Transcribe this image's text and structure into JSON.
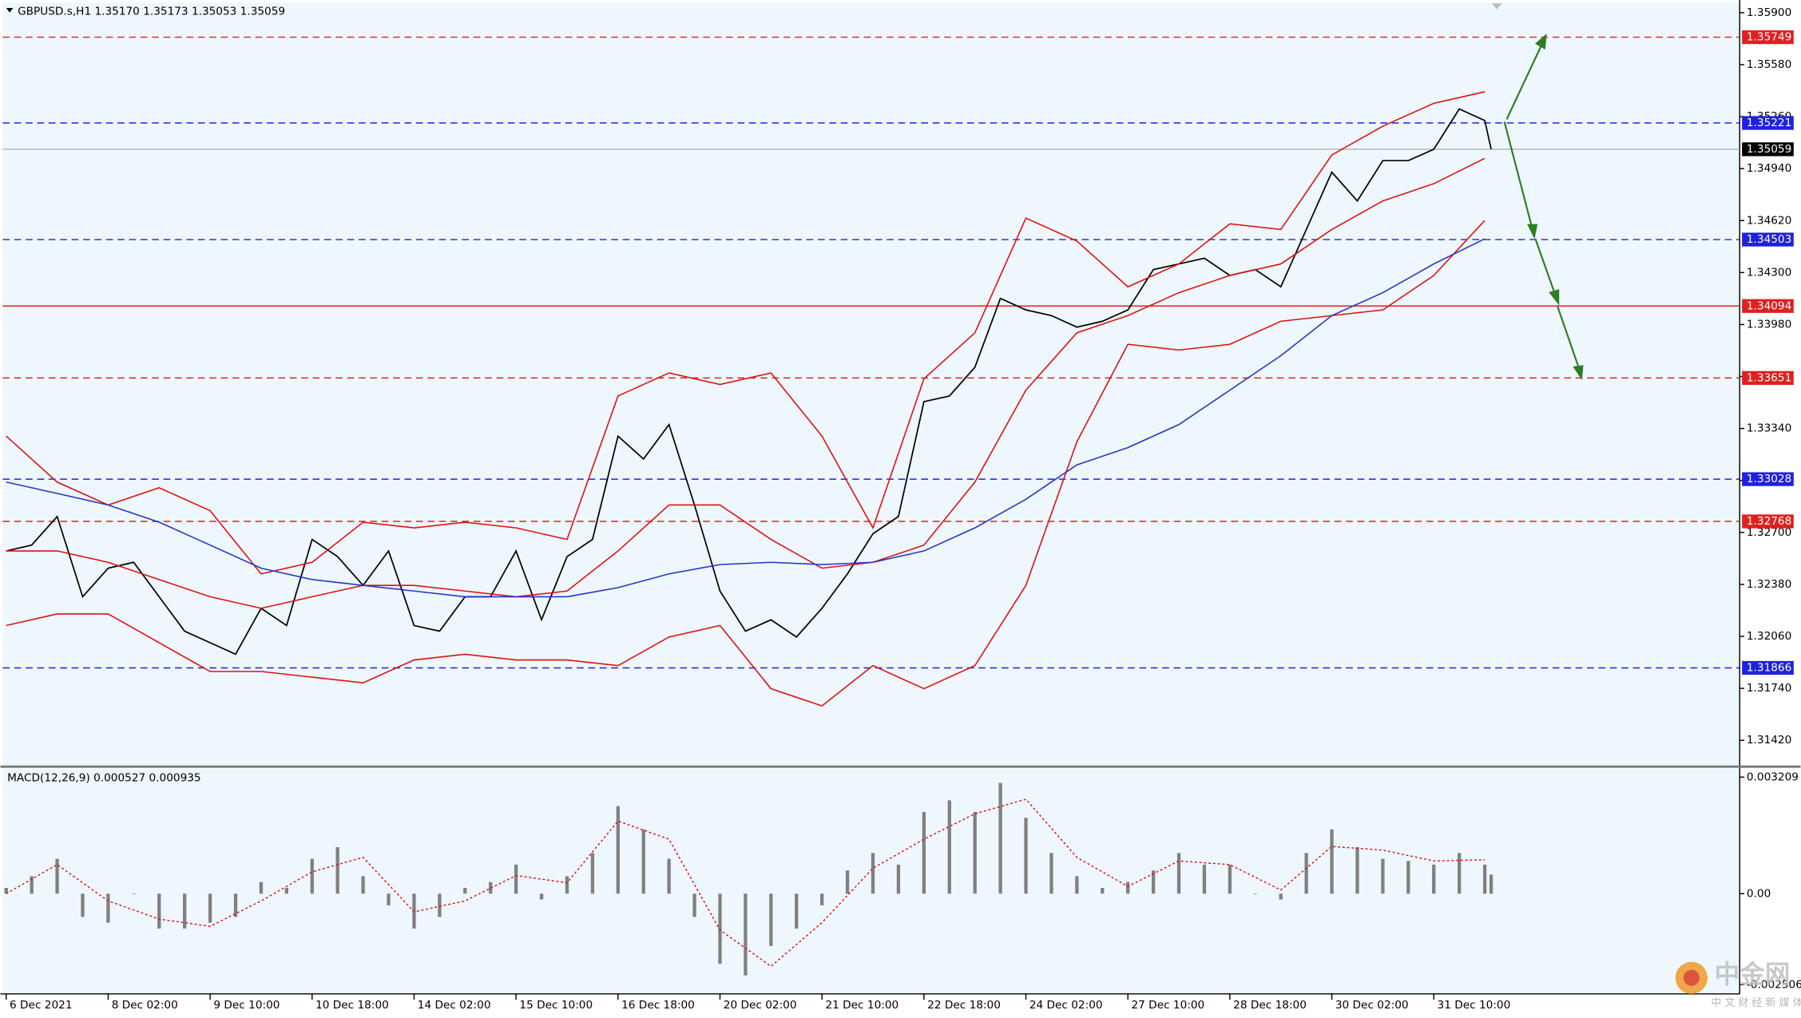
{
  "chart_data": [
    {
      "type": "line",
      "title": "GBPUSD.s,H1  1.35170 1.35173 1.35053 1.35059",
      "xlim": [
        -1.08,
        544
      ],
      "ylim": [
        1.31265,
        1.35978
      ],
      "xticks": [
        {
          "value": 0,
          "label": "6 Dec 2021"
        },
        {
          "value": 32,
          "label": "8 Dec 02:00"
        },
        {
          "value": 64,
          "label": "9 Dec 10:00"
        },
        {
          "value": 96,
          "label": "10 Dec 18:00"
        },
        {
          "value": 128,
          "label": "14 Dec 02:00"
        },
        {
          "value": 160,
          "label": "15 Dec 10:00"
        },
        {
          "value": 192,
          "label": "16 Dec 18:00"
        },
        {
          "value": 224,
          "label": "20 Dec 02:00"
        },
        {
          "value": 256,
          "label": "21 Dec 10:00"
        },
        {
          "value": 288,
          "label": "22 Dec 18:00"
        },
        {
          "value": 320,
          "label": "24 Dec 02:00"
        },
        {
          "value": 352,
          "label": "27 Dec 10:00"
        },
        {
          "value": 384,
          "label": "28 Dec 18:00"
        },
        {
          "value": 416,
          "label": "30 Dec 02:00"
        },
        {
          "value": 448,
          "label": "31 Dec 10:00"
        }
      ],
      "yticks": [
        {
          "value": 1.359,
          "label": "1.35900"
        },
        {
          "value": 1.3558,
          "label": "1.35580"
        },
        {
          "value": 1.3526,
          "label": "1.35260"
        },
        {
          "value": 1.3494,
          "label": "1.34940"
        },
        {
          "value": 1.3462,
          "label": "1.34620"
        },
        {
          "value": 1.343,
          "label": "1.34300"
        },
        {
          "value": 1.3398,
          "label": "1.33980"
        },
        {
          "value": 1.3366,
          "label": "1.33660"
        },
        {
          "value": 1.3334,
          "label": "1.33340"
        },
        {
          "value": 1.3302,
          "label": "1.33020"
        },
        {
          "value": 1.327,
          "label": "1.32700"
        },
        {
          "value": 1.3238,
          "label": "1.32380"
        },
        {
          "value": 1.3206,
          "label": "1.32060"
        },
        {
          "value": 1.3174,
          "label": "1.31740"
        },
        {
          "value": 1.3142,
          "label": "1.31420"
        }
      ],
      "series": [
        {
          "color": "#000000",
          "x": [
            0,
            8,
            16,
            24,
            32,
            40,
            48,
            56,
            64,
            72,
            80,
            88,
            96,
            104,
            112,
            120,
            128,
            136,
            144,
            152,
            160,
            168,
            176,
            184,
            192,
            200,
            208,
            216,
            224,
            232,
            240,
            248,
            256,
            264,
            272,
            280,
            288,
            296,
            304,
            312,
            320,
            328,
            336,
            344,
            352,
            360,
            368,
            376,
            384,
            392,
            400,
            408,
            416,
            424,
            432,
            440,
            448,
            456,
            464,
            466
          ],
          "values": [
            1.32586,
            1.32622,
            1.32798,
            1.32304,
            1.3248,
            1.32516,
            1.32304,
            1.32092,
            1.32021,
            1.3195,
            1.32233,
            1.32127,
            1.32657,
            1.32551,
            1.32374,
            1.32586,
            1.32127,
            1.32092,
            1.32304,
            1.32304,
            1.32586,
            1.32162,
            1.32551,
            1.32657,
            1.33293,
            1.33152,
            1.33364,
            1.32869,
            1.32339,
            1.32092,
            1.32162,
            1.32056,
            1.32233,
            1.32445,
            1.32692,
            1.32798,
            1.33505,
            1.3354,
            1.33717,
            1.34141,
            1.3407,
            1.34035,
            1.33964,
            1.34,
            1.3407,
            1.34318,
            1.34353,
            1.34388,
            1.34282,
            1.34318,
            1.34212,
            1.34565,
            1.34918,
            1.34741,
            1.34989,
            1.34989,
            1.35059,
            1.35307,
            1.35236,
            1.35059
          ]
        },
        {
          "color": "#e01010",
          "x": [
            0,
            16,
            32,
            48,
            64,
            80,
            96,
            112,
            128,
            144,
            160,
            176,
            192,
            208,
            224,
            240,
            256,
            272,
            288,
            304,
            320,
            336,
            352,
            368,
            384,
            400,
            416,
            432,
            448,
            464
          ],
          "values": [
            1.33293,
            1.3301,
            1.32869,
            1.32975,
            1.32834,
            1.32445,
            1.32516,
            1.32763,
            1.32728,
            1.32763,
            1.32728,
            1.32657,
            1.3354,
            1.33682,
            1.33611,
            1.33682,
            1.33293,
            1.32728,
            1.33646,
            1.33929,
            1.34635,
            1.34494,
            1.34212,
            1.34353,
            1.346,
            1.34565,
            1.35024,
            1.35201,
            1.35342,
            1.35413
          ]
        },
        {
          "color": "#e01010",
          "x": [
            0,
            16,
            32,
            48,
            64,
            80,
            96,
            112,
            128,
            144,
            160,
            176,
            192,
            208,
            224,
            240,
            256,
            272,
            288,
            304,
            320,
            336,
            352,
            368,
            384,
            400,
            416,
            432,
            448,
            464
          ],
          "values": [
            1.32586,
            1.32586,
            1.32516,
            1.3241,
            1.32304,
            1.32233,
            1.32304,
            1.32374,
            1.32374,
            1.32339,
            1.32304,
            1.32339,
            1.32586,
            1.32869,
            1.32869,
            1.32657,
            1.3248,
            1.32516,
            1.32622,
            1.3301,
            1.33576,
            1.33929,
            1.34035,
            1.34176,
            1.34282,
            1.34353,
            1.34565,
            1.34741,
            1.34847,
            1.35003
          ]
        },
        {
          "color": "#e01010",
          "x": [
            0,
            16,
            32,
            48,
            64,
            80,
            96,
            112,
            128,
            144,
            160,
            176,
            192,
            208,
            224,
            240,
            256,
            272,
            288,
            304,
            320,
            336,
            352,
            368,
            384,
            400,
            416,
            432,
            448,
            464
          ],
          "values": [
            1.32127,
            1.32198,
            1.32198,
            1.32021,
            1.31844,
            1.31844,
            1.31809,
            1.31774,
            1.31915,
            1.3195,
            1.31915,
            1.31915,
            1.3188,
            1.32056,
            1.32127,
            1.31738,
            1.31632,
            1.3188,
            1.31738,
            1.3188,
            1.32374,
            1.33258,
            1.33858,
            1.33823,
            1.33858,
            1.34,
            1.34035,
            1.3407,
            1.34282,
            1.34621
          ]
        },
        {
          "color": "#2436c8",
          "x": [
            0,
            16,
            32,
            48,
            64,
            80,
            96,
            112,
            128,
            144,
            160,
            176,
            192,
            208,
            224,
            240,
            256,
            272,
            288,
            304,
            320,
            336,
            352,
            368,
            384,
            400,
            416,
            432,
            448,
            464
          ],
          "values": [
            1.3301,
            1.3294,
            1.32869,
            1.32763,
            1.32622,
            1.3248,
            1.3241,
            1.32374,
            1.32339,
            1.32304,
            1.32304,
            1.32304,
            1.3236,
            1.32445,
            1.32502,
            1.32516,
            1.32502,
            1.32516,
            1.32586,
            1.32728,
            1.32904,
            1.33116,
            1.33222,
            1.33364,
            1.33576,
            1.33788,
            1.34035,
            1.34176,
            1.34353,
            1.34508
          ]
        }
      ],
      "levels": [
        {
          "value": 1.35749,
          "label": "1.35749",
          "color": "#e02020",
          "style": "dashed"
        },
        {
          "value": 1.35221,
          "label": "1.35221",
          "color": "#2020e0",
          "style": "dashed"
        },
        {
          "value": 1.35059,
          "label": "1.35059",
          "color": "#000000",
          "style": "current"
        },
        {
          "value": 1.34503,
          "label": "1.34503",
          "color": "#2020e0",
          "style": "dashed"
        },
        {
          "value": 1.34094,
          "label": "1.34094",
          "color": "#e02020",
          "style": "solid"
        },
        {
          "value": 1.33651,
          "label": "1.33651",
          "color": "#e02020",
          "style": "dashed"
        },
        {
          "value": 1.33028,
          "label": "1.33028",
          "color": "#2020e0",
          "style": "dashed"
        },
        {
          "value": 1.32768,
          "label": "1.32768",
          "color": "#e02020",
          "style": "dashed"
        },
        {
          "value": 1.31866,
          "label": "1.31866",
          "color": "#2020e0",
          "style": "dashed"
        }
      ]
    },
    {
      "type": "bar",
      "title": "MACD(12,26,9) 0.000527 0.000935",
      "xlim": [
        -1.08,
        544
      ],
      "ylim": [
        -0.00276,
        0.003434
      ],
      "yticks": [
        {
          "value": 0.003209,
          "label": "0.003209"
        },
        {
          "value": 0,
          "label": "0.00"
        },
        {
          "value": -0.002506,
          "label": "-0.002506"
        }
      ],
      "x": [
        0,
        8,
        16,
        24,
        32,
        40,
        48,
        56,
        64,
        72,
        80,
        88,
        96,
        104,
        112,
        120,
        128,
        136,
        144,
        152,
        160,
        168,
        176,
        184,
        192,
        200,
        208,
        216,
        224,
        232,
        240,
        248,
        256,
        264,
        272,
        280,
        288,
        296,
        304,
        312,
        320,
        328,
        336,
        344,
        352,
        360,
        368,
        376,
        384,
        392,
        400,
        408,
        416,
        424,
        432,
        440,
        448,
        456,
        464,
        466
      ],
      "values": [
        0.00016,
        0.00048,
        0.00096,
        -0.00064,
        -0.0008,
        0,
        -0.00096,
        -0.00096,
        -0.0008,
        -0.00064,
        0.00032,
        0.00016,
        0.00096,
        0.00128,
        0.00048,
        -0.00032,
        -0.00096,
        -0.00064,
        0.00016,
        0.00032,
        0.0008,
        -0.00016,
        0.00048,
        0.00112,
        0.00241,
        0.00177,
        0.00096,
        -0.00064,
        -0.00193,
        -0.00225,
        -0.00144,
        -0.00096,
        -0.00032,
        0.00064,
        0.00112,
        0.0008,
        0.00225,
        0.00257,
        0.00225,
        0.00305,
        0.00209,
        0.00112,
        0.00048,
        0.00016,
        0.00032,
        0.00064,
        0.00112,
        0.0008,
        0.0008,
        0,
        -0.00016,
        0.00112,
        0.00177,
        0.00128,
        0.00096,
        0.0009,
        0.0008,
        0.00112,
        0.0008,
        0.000527
      ],
      "color": "#808080",
      "signal": {
        "color": "#e01010",
        "x": [
          0,
          16,
          32,
          48,
          64,
          80,
          96,
          112,
          128,
          144,
          160,
          176,
          192,
          208,
          224,
          240,
          256,
          272,
          288,
          304,
          320,
          336,
          352,
          368,
          384,
          400,
          416,
          432,
          448,
          464
        ],
        "values": [
          0,
          0.0008,
          -0.0002,
          -0.0007,
          -0.0009,
          -0.0002,
          0.0006,
          0.001,
          -0.0005,
          -0.0002,
          0.0005,
          0.0003,
          0.002,
          0.0015,
          -0.001,
          -0.002,
          -0.0008,
          0.0007,
          0.0015,
          0.0022,
          0.0026,
          0.001,
          0.0002,
          0.0009,
          0.0008,
          0.0001,
          0.0013,
          0.0012,
          0.0009,
          0.000935
        ]
      }
    }
  ],
  "watermark": {
    "title": "中金网",
    "subtitle": "中 文 财 经 新 媒 体"
  }
}
